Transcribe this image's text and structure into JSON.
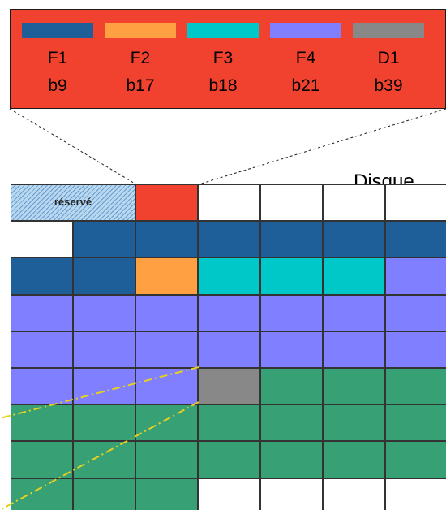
{
  "legend": {
    "entries": [
      {
        "label": "F1",
        "block": "b9",
        "color": "#1f5f99"
      },
      {
        "label": "F2",
        "block": "b17",
        "color": "#ffa143"
      },
      {
        "label": "F3",
        "block": "b18",
        "color": "#00c8c8"
      },
      {
        "label": "F4",
        "block": "b21",
        "color": "#7f7fff"
      },
      {
        "label": "D1",
        "block": "b39",
        "color": "#888888"
      }
    ],
    "background": "#f0422e"
  },
  "disk": {
    "title": "Disque",
    "reserved_label": "réservé",
    "colors": {
      "F1": "#1f5f99",
      "F2": "#ffa143",
      "F3": "#00c8c8",
      "F4": "#7f7fff",
      "D1": "#888888",
      "index": "#f0422e",
      "data": "#38a075",
      "free": "#ffffff",
      "reserved": "#b8d8f0"
    },
    "rows": [
      [
        "reserved",
        "reserved",
        "index",
        "free",
        "free",
        "free",
        "free"
      ],
      [
        "free",
        "F1",
        "F1",
        "F1",
        "F1",
        "F1",
        "F1"
      ],
      [
        "F1",
        "F1",
        "F2",
        "F3",
        "F3",
        "F3",
        "F4"
      ],
      [
        "F4",
        "F4",
        "F4",
        "F4",
        "F4",
        "F4",
        "F4"
      ],
      [
        "F4",
        "F4",
        "F4",
        "F4",
        "F4",
        "F4",
        "F4"
      ],
      [
        "F4",
        "F4",
        "F4",
        "D1",
        "data",
        "data",
        "data"
      ],
      [
        "data",
        "data",
        "data",
        "data",
        "data",
        "data",
        "data"
      ],
      [
        "data",
        "data",
        "data",
        "data",
        "data",
        "data",
        "data"
      ],
      [
        "data",
        "data",
        "data",
        "free",
        "free",
        "free",
        "free"
      ]
    ]
  }
}
